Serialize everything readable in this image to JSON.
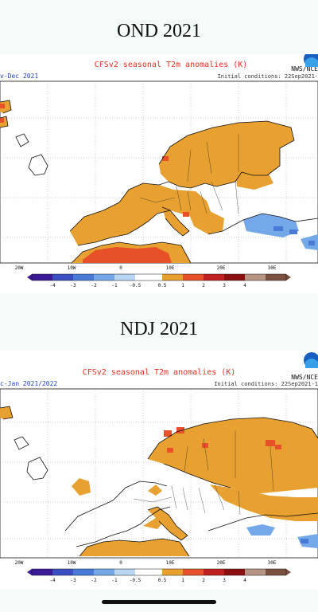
{
  "panels": [
    {
      "section_title": "OND 2021",
      "map_title": "CFSv2 seasonal T2m anomalies (K)",
      "period": "v-Dec 2021",
      "initial_conditions": "Initial conditions: 22Sep2021-",
      "agency": "NWS/NCE",
      "lon_ticks": [
        "20W",
        "10W",
        "0",
        "10E",
        "20E",
        "30E"
      ],
      "colorbar_ticks": [
        "-4",
        "-3",
        "-2",
        "-1",
        "-0.5",
        "0.5",
        "1",
        "2",
        "3",
        "4"
      ]
    },
    {
      "section_title": "NDJ 2021",
      "map_title": "CFSv2 seasonal T2m anomalies (K)",
      "period": "c-Jan 2021/2022",
      "initial_conditions": "Initial conditions: 22Sep2021-1",
      "agency": "NWS/NCE",
      "lon_ticks": [
        "20W",
        "10W",
        "0",
        "10E",
        "20E",
        "30E"
      ],
      "colorbar_ticks": [
        "-4",
        "-3",
        "-2",
        "-1",
        "-0.5",
        "0.5",
        "1",
        "2",
        "3",
        "4"
      ]
    }
  ],
  "colorbar_colors": [
    "#3a1a96",
    "#3b4fc2",
    "#4a7ad8",
    "#74a8e8",
    "#b8d6f4",
    "#ffffff",
    "#e8a030",
    "#e8502a",
    "#c02020",
    "#8a1010",
    "#b89484",
    "#7a5040"
  ],
  "colors": {
    "warm": "#e8a030",
    "hot": "#e8502a",
    "cool": "#74a8e8",
    "cooler": "#4a7ad8"
  }
}
